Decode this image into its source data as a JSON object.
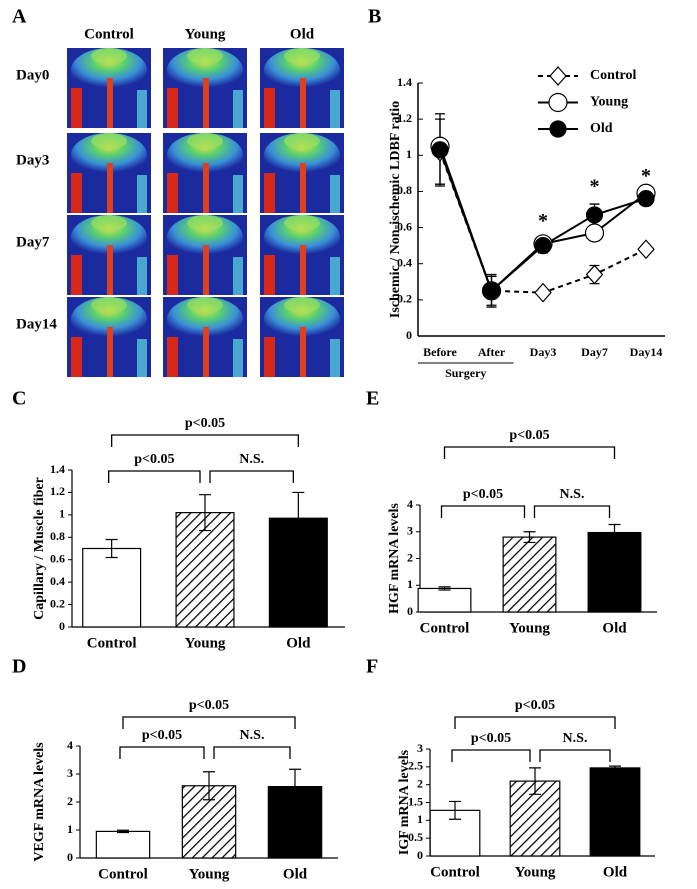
{
  "chart_data": [
    {
      "type": "image-grid",
      "panel": "A",
      "columns": [
        "Control",
        "Young",
        "Old"
      ],
      "rows": [
        "Day0",
        "Day3",
        "Day7",
        "Day14"
      ]
    },
    {
      "type": "line",
      "panel": "B",
      "ylabel": "Ischemic / Non-ischemic LDBF ratio",
      "categories": [
        "Before",
        "After",
        "Day3",
        "Day7",
        "Day14"
      ],
      "category_group": {
        "label": "Surgery",
        "members": [
          "Before",
          "After"
        ]
      },
      "ylim": [
        0,
        1.4
      ],
      "yticks": [
        0,
        0.2,
        0.4,
        0.6,
        0.8,
        1,
        1.2,
        1.4
      ],
      "legend": "top-right",
      "series": [
        {
          "name": "Control",
          "color": "#000000",
          "marker": "diamond",
          "filled": false,
          "dashed": true,
          "values": [
            1.02,
            0.25,
            0.24,
            0.34,
            0.48
          ],
          "errors": [
            0.18,
            0.08,
            null,
            0.05,
            null
          ]
        },
        {
          "name": "Young",
          "color": "#000000",
          "marker": "circle",
          "filled": false,
          "dashed": false,
          "values": [
            1.05,
            0.25,
            0.51,
            0.57,
            0.79
          ],
          "errors": [
            null,
            null,
            null,
            null,
            null
          ]
        },
        {
          "name": "Old",
          "color": "#000000",
          "marker": "circle",
          "filled": true,
          "dashed": false,
          "values": [
            1.03,
            0.25,
            0.5,
            0.67,
            0.76
          ],
          "errors": [
            0.2,
            0.09,
            0.04,
            0.06,
            0.03
          ]
        }
      ],
      "annotations": [
        {
          "text": "*",
          "category": "Day3"
        },
        {
          "text": "*",
          "category": "Day7"
        },
        {
          "text": "*",
          "category": "Day14"
        }
      ]
    },
    {
      "type": "bar",
      "panel": "C",
      "ylabel": "Capillary / Muscle fiber",
      "categories": [
        "Control",
        "Young",
        "Old"
      ],
      "values": [
        0.7,
        1.02,
        0.97
      ],
      "errors": [
        0.08,
        0.16,
        0.23
      ],
      "bar_fills": [
        "white",
        "hatched",
        "black"
      ],
      "ylim": [
        0,
        1.4
      ],
      "yticks": [
        0,
        0.2,
        0.4,
        0.6,
        0.8,
        1,
        1.2,
        1.4
      ],
      "comparisons": [
        {
          "pair": [
            "Control",
            "Young"
          ],
          "label": "p<0.05"
        },
        {
          "pair": [
            "Young",
            "Old"
          ],
          "label": "N.S."
        },
        {
          "pair": [
            "Control",
            "Old"
          ],
          "label": "p<0.05"
        }
      ]
    },
    {
      "type": "bar",
      "panel": "E",
      "ylabel": "HGF mRNA levels",
      "categories": [
        "Control",
        "Young",
        "Old"
      ],
      "values": [
        0.88,
        2.8,
        2.97
      ],
      "errors": [
        0.06,
        0.2,
        0.3
      ],
      "bar_fills": [
        "white",
        "hatched",
        "black"
      ],
      "ylim": [
        0,
        4
      ],
      "yticks": [
        0,
        1,
        2,
        3,
        4
      ],
      "comparisons": [
        {
          "pair": [
            "Control",
            "Young"
          ],
          "label": "p<0.05"
        },
        {
          "pair": [
            "Young",
            "Old"
          ],
          "label": "N.S."
        },
        {
          "pair": [
            "Control",
            "Old"
          ],
          "label": "p<0.05"
        }
      ]
    },
    {
      "type": "bar",
      "panel": "D",
      "ylabel": "VEGF mRNA levels",
      "categories": [
        "Control",
        "Young",
        "Old"
      ],
      "values": [
        0.95,
        2.58,
        2.55
      ],
      "errors": [
        0.04,
        0.5,
        0.62
      ],
      "bar_fills": [
        "white",
        "hatched",
        "black"
      ],
      "ylim": [
        0,
        4
      ],
      "yticks": [
        0,
        1,
        2,
        3,
        4
      ],
      "comparisons": [
        {
          "pair": [
            "Control",
            "Young"
          ],
          "label": "p<0.05"
        },
        {
          "pair": [
            "Young",
            "Old"
          ],
          "label": "N.S."
        },
        {
          "pair": [
            "Control",
            "Old"
          ],
          "label": "p<0.05"
        }
      ]
    },
    {
      "type": "bar",
      "panel": "F",
      "ylabel": "IGF mRNA levels",
      "categories": [
        "Control",
        "Young",
        "Old"
      ],
      "values": [
        1.28,
        2.1,
        2.47
      ],
      "errors": [
        0.25,
        0.37,
        0.05
      ],
      "bar_fills": [
        "white",
        "hatched",
        "black"
      ],
      "ylim": [
        0,
        3
      ],
      "yticks": [
        0,
        0.5,
        1,
        1.5,
        2,
        2.5,
        3
      ],
      "comparisons": [
        {
          "pair": [
            "Control",
            "Young"
          ],
          "label": "p<0.05"
        },
        {
          "pair": [
            "Young",
            "Old"
          ],
          "label": "N.S."
        },
        {
          "pair": [
            "Control",
            "Old"
          ],
          "label": "p<0.05"
        }
      ]
    }
  ]
}
